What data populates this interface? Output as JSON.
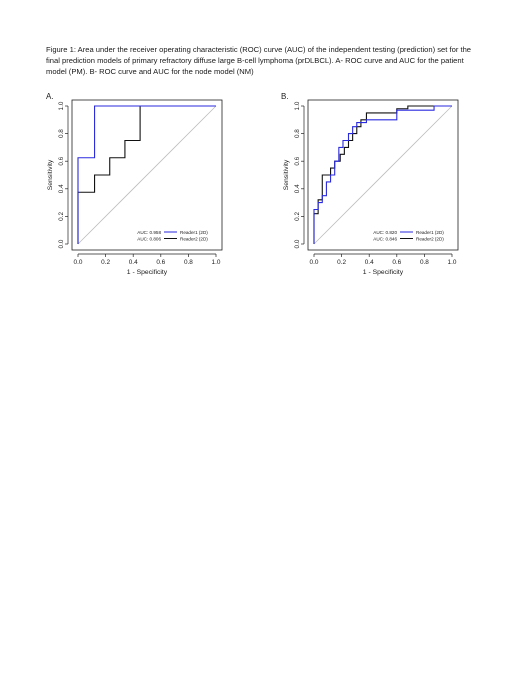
{
  "caption": "Figure 1: Area under the receiver operating characteristic (ROC) curve (AUC) of the independent testing (prediction) set for the final prediction models of primary refractory diffuse large B-cell lymphoma (prDLBCL). A- ROC curve and AUC for the patient model (PM). B- ROC curve and AUC for the node model (NM)",
  "colors": {
    "reader1": "#2a2adf",
    "reader2": "#111111",
    "diagonal": "#bdbdbd"
  },
  "chart_data": [
    {
      "type": "line",
      "panel_label": "A.",
      "xlabel": "1 - Specificity",
      "ylabel": "Sensitivity",
      "xlim": [
        0,
        1
      ],
      "ylim": [
        0,
        1
      ],
      "xticks": [
        "0.0",
        "0.2",
        "0.4",
        "0.6",
        "0.8",
        "1.0"
      ],
      "yticks": [
        "0.0",
        "0.2",
        "0.4",
        "0.6",
        "0.8",
        "1.0"
      ],
      "grid": false,
      "legend_position": "bottom-right",
      "reference_line": [
        [
          0,
          0
        ],
        [
          1,
          1
        ]
      ],
      "series": [
        {
          "name": "Reader1 (2D)",
          "auc_label": "AUC: 0.958",
          "color": "#2a2adf",
          "points": [
            [
              0,
              0
            ],
            [
              0,
              0.625
            ],
            [
              0.12,
              0.625
            ],
            [
              0.12,
              1
            ],
            [
              1,
              1
            ]
          ]
        },
        {
          "name": "Reader2 (2D)",
          "auc_label": "AUC: 0.806",
          "color": "#111111",
          "points": [
            [
              0,
              0
            ],
            [
              0,
              0.375
            ],
            [
              0.12,
              0.375
            ],
            [
              0.12,
              0.5
            ],
            [
              0.23,
              0.5
            ],
            [
              0.23,
              0.625
            ],
            [
              0.34,
              0.625
            ],
            [
              0.34,
              0.75
            ],
            [
              0.45,
              0.75
            ],
            [
              0.45,
              1
            ],
            [
              1,
              1
            ]
          ]
        }
      ]
    },
    {
      "type": "line",
      "panel_label": "B.",
      "xlabel": "1 - Specificity",
      "ylabel": "Sensitivity",
      "xlim": [
        0,
        1
      ],
      "ylim": [
        0,
        1
      ],
      "xticks": [
        "0.0",
        "0.2",
        "0.4",
        "0.6",
        "0.8",
        "1.0"
      ],
      "yticks": [
        "0.0",
        "0.2",
        "0.4",
        "0.6",
        "0.8",
        "1.0"
      ],
      "grid": false,
      "legend_position": "bottom-right",
      "reference_line": [
        [
          0,
          0
        ],
        [
          1,
          1
        ]
      ],
      "series": [
        {
          "name": "Reader1 (2D)",
          "auc_label": "AUC: 0.820",
          "color": "#2a2adf",
          "points": [
            [
              0,
              0
            ],
            [
              0,
              0.25
            ],
            [
              0.03,
              0.25
            ],
            [
              0.03,
              0.3
            ],
            [
              0.06,
              0.3
            ],
            [
              0.06,
              0.35
            ],
            [
              0.09,
              0.35
            ],
            [
              0.09,
              0.45
            ],
            [
              0.12,
              0.45
            ],
            [
              0.12,
              0.5
            ],
            [
              0.15,
              0.5
            ],
            [
              0.15,
              0.6
            ],
            [
              0.18,
              0.6
            ],
            [
              0.18,
              0.7
            ],
            [
              0.21,
              0.7
            ],
            [
              0.21,
              0.75
            ],
            [
              0.25,
              0.75
            ],
            [
              0.25,
              0.8
            ],
            [
              0.28,
              0.8
            ],
            [
              0.28,
              0.85
            ],
            [
              0.31,
              0.85
            ],
            [
              0.31,
              0.88
            ],
            [
              0.38,
              0.88
            ],
            [
              0.38,
              0.9
            ],
            [
              0.6,
              0.9
            ],
            [
              0.6,
              0.97
            ],
            [
              0.87,
              0.97
            ],
            [
              0.87,
              1
            ],
            [
              1,
              1
            ]
          ]
        },
        {
          "name": "Reader2 (2D)",
          "auc_label": "AUC: 0.846",
          "color": "#111111",
          "points": [
            [
              0,
              0
            ],
            [
              0,
              0.22
            ],
            [
              0.03,
              0.22
            ],
            [
              0.03,
              0.32
            ],
            [
              0.06,
              0.32
            ],
            [
              0.06,
              0.5
            ],
            [
              0.12,
              0.5
            ],
            [
              0.12,
              0.55
            ],
            [
              0.15,
              0.55
            ],
            [
              0.15,
              0.6
            ],
            [
              0.19,
              0.6
            ],
            [
              0.19,
              0.65
            ],
            [
              0.22,
              0.65
            ],
            [
              0.22,
              0.7
            ],
            [
              0.25,
              0.7
            ],
            [
              0.25,
              0.75
            ],
            [
              0.28,
              0.75
            ],
            [
              0.28,
              0.8
            ],
            [
              0.31,
              0.8
            ],
            [
              0.31,
              0.85
            ],
            [
              0.34,
              0.85
            ],
            [
              0.34,
              0.9
            ],
            [
              0.38,
              0.9
            ],
            [
              0.38,
              0.95
            ],
            [
              0.6,
              0.95
            ],
            [
              0.6,
              0.98
            ],
            [
              0.68,
              0.98
            ],
            [
              0.68,
              1
            ],
            [
              1,
              1
            ]
          ]
        }
      ]
    }
  ]
}
